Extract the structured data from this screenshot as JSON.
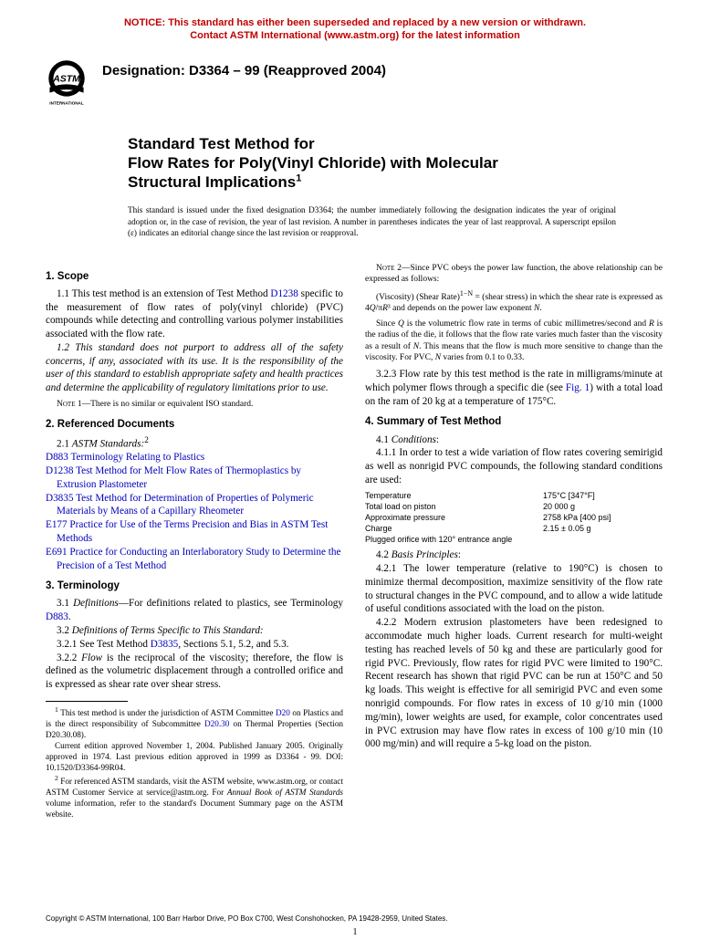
{
  "notice": {
    "line1": "NOTICE: This standard has either been superseded and replaced by a new version or withdrawn.",
    "line2": "Contact ASTM International (www.astm.org) for the latest information"
  },
  "designation": "Designation: D3364 – 99 (Reapproved 2004)",
  "logo_label": "ASTM INTERNATIONAL",
  "title": {
    "l1": "Standard Test Method for",
    "l2": "Flow Rates for Poly(Vinyl Chloride) with Molecular",
    "l3": "Structural Implications",
    "sup": "1"
  },
  "issuance": "This standard is issued under the fixed designation D3364; the number immediately following the designation indicates the year of original adoption or, in the case of revision, the year of last revision. A number in parentheses indicates the year of last reapproval. A superscript epsilon (ε) indicates an editorial change since the last revision or reapproval.",
  "s1_head": "1. Scope",
  "s1_1a": "1.1 This test method is an extension of Test Method ",
  "s1_1link": "D1238",
  "s1_1b": " specific to the measurement of flow rates of poly(vinyl chloride) (PVC) compounds while detecting and controlling various polymer instabilities associated with the flow rate.",
  "s1_2": "1.2 This standard does not purport to address all of the safety concerns, if any, associated with its use. It is the responsibility of the user of this standard to establish appropriate safety and health practices and determine the applicability of regulatory limitations prior to use.",
  "note1_label": "Note 1",
  "note1": "—There is no similar or equivalent ISO standard.",
  "s2_head": "2. Referenced Documents",
  "s2_1": "2.1 ",
  "s2_1ital": "ASTM Standards:",
  "s2_sup": "2",
  "refs": [
    {
      "std": "D883",
      "txt": " Terminology Relating to Plastics"
    },
    {
      "std": "D1238",
      "txt": " Test Method for Melt Flow Rates of Thermoplastics by Extrusion Plastometer"
    },
    {
      "std": "D3835",
      "txt": " Test Method for Determination of Properties of Polymeric Materials by Means of a Capillary Rheometer"
    },
    {
      "std": "E177",
      "txt": " Practice for Use of the Terms Precision and Bias in ASTM Test Methods"
    },
    {
      "std": "E691",
      "txt": " Practice for Conducting an Interlaboratory Study to Determine the Precision of a Test Method"
    }
  ],
  "s3_head": "3. Terminology",
  "s3_1a": "3.1 ",
  "s3_1ital": "Definitions",
  "s3_1b": "—For definitions related to plastics, see Terminology ",
  "s3_1link": "D883",
  "s3_1c": ".",
  "s3_2": "3.2 ",
  "s3_2ital": "Definitions of Terms Specific to This Standard:",
  "s3_2_1a": "3.2.1 See Test Method ",
  "s3_2_1link": "D3835",
  "s3_2_1b": ", Sections 5.1, 5.2, and 5.3.",
  "s3_2_2a": "3.2.2 ",
  "s3_2_2ital": "Flow",
  "s3_2_2b": " is the reciprocal of the viscosity; therefore, the flow is defined as the volumetric displacement through a controlled orifice and is expressed as shear rate over shear stress.",
  "fn1a": " This test method is under the jurisdiction of ASTM Committee ",
  "fn1link1": "D20",
  "fn1b": " on Plastics and is the direct responsibility of Subcommittee ",
  "fn1link2": "D20.30",
  "fn1c": " on Thermal Properties (Section D20.30.08).",
  "fn1d": "Current edition approved November 1, 2004. Published January 2005. Originally approved in 1974. Last previous edition approved in 1999 as D3364 - 99. DOI: 10.1520/D3364-99R04.",
  "fn2a": " For referenced ASTM standards, visit the ASTM website, www.astm.org, or contact ASTM Customer Service at service@astm.org. For ",
  "fn2ital": "Annual Book of ASTM Standards",
  "fn2b": " volume information, refer to the standard's Document Summary page on the ASTM website.",
  "note2_label": "Note 2",
  "note2a": "—Since PVC obeys the power law function, the above relationship can be expressed as follows:",
  "note2b": "(Viscosity) (Shear Rate)",
  "note2sup": "1−N",
  "note2c": " = (shear stress) in which the shear rate is expressed as 4",
  "note2Q": "Q",
  "note2d": "/π",
  "note2R": "R",
  "note2e": "³ and depends on the power law exponent ",
  "note2N": "N",
  "note2f": ".",
  "note2g": "Since ",
  "note2g2": " is the volumetric flow rate in terms of cubic millimetres/second and ",
  "note2g3": " is the radius of the die, it follows that the flow rate varies much faster than the viscosity as a result of ",
  "note2g4": ". This means that the flow is much more sensitive to change than the viscosity. For PVC, ",
  "note2g5": " varies from 0.1 to 0.33.",
  "s3_2_3a": "3.2.3 Flow rate by this test method is the rate in milligrams/minute at which polymer flows through a specific die (see ",
  "s3_2_3link": "Fig. 1",
  "s3_2_3b": ") with a total load on the ram of 20 kg at a temperature of 175°C.",
  "s4_head": "4. Summary of Test Method",
  "s4_1": "4.1 ",
  "s4_1ital": "Conditions",
  "s4_1c": ":",
  "s4_1_1": "4.1.1 In order to test a wide variation of flow rates covering semirigid as well as nonrigid PVC compounds, the following standard conditions are used:",
  "cond": [
    {
      "label": "Temperature",
      "val": "175°C [347°F]"
    },
    {
      "label": "Total load on piston",
      "val": "20 000 g"
    },
    {
      "label": "Approximate pressure",
      "val": "2758 kPa [400 psi]"
    },
    {
      "label": "Charge",
      "val": "2.15 ± 0.05 g"
    },
    {
      "label": "Plugged orifice with 120° entrance angle",
      "val": ""
    }
  ],
  "s4_2": "4.2 ",
  "s4_2ital": "Basis Principles",
  "s4_2c": ":",
  "s4_2_1": "4.2.1 The lower temperature (relative to 190°C) is chosen to minimize thermal decomposition, maximize sensitivity of the flow rate to structural changes in the PVC compound, and to allow a wide latitude of useful conditions associated with the load on the piston.",
  "s4_2_2": "4.2.2 Modern extrusion plastometers have been redesigned to accommodate much higher loads. Current research for multi-weight testing has reached levels of 50 kg and these are particularly good for rigid PVC. Previously, flow rates for rigid PVC were limited to 190°C. Recent research has shown that rigid PVC can be run at 150°C and 50 kg loads. This weight is effective for all semirigid PVC and even some nonrigid compounds. For flow rates in excess of 10 g/10 min (1000 mg/min), lower weights are used, for example, color concentrates used in PVC extrusion may have flow rates in excess of 100 g/10 min (10 000 mg/min) and will require a 5-kg load on the piston.",
  "copyright": "Copyright © ASTM International, 100 Barr Harbor Drive, PO Box C700, West Conshohocken, PA 19428-2959, United States.",
  "pagenum": "1"
}
